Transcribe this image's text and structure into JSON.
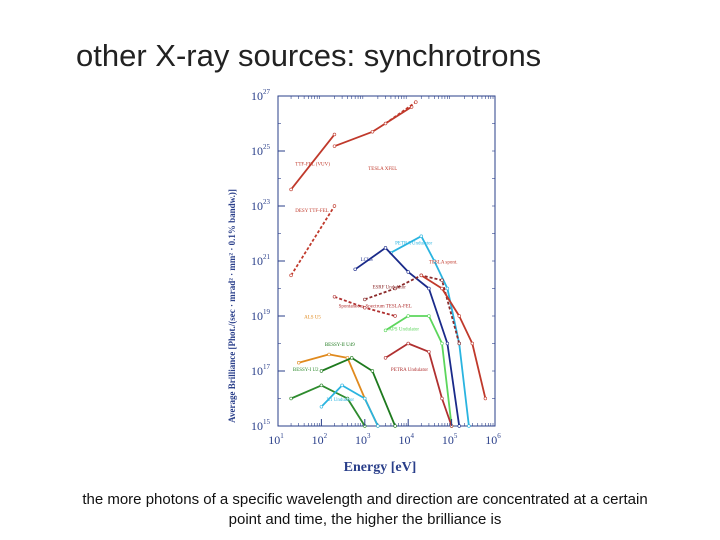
{
  "slide": {
    "title": "other X-ray sources: synchrotrons",
    "caption_line1": "the more photons of a specific wavelength and direction are concentrated at a certain",
    "caption_line2": "point and time, the higher the brilliance is"
  },
  "chart_data": {
    "type": "line",
    "xlabel": "Energy [eV]",
    "ylabel": "Average Brilliance [Phot./(sec · mrad² · mm² · 0.1% bandw.)]",
    "xscale": "log",
    "yscale": "log",
    "xlim": [
      10,
      1000000
    ],
    "ylim": [
      1000000000000000.0,
      1e+27
    ],
    "x_ticks": [
      {
        "base": "10",
        "exp": "1",
        "value": 10
      },
      {
        "base": "10",
        "exp": "2",
        "value": 100
      },
      {
        "base": "10",
        "exp": "3",
        "value": 1000
      },
      {
        "base": "10",
        "exp": "4",
        "value": 10000
      },
      {
        "base": "10",
        "exp": "5",
        "value": 100000
      },
      {
        "base": "10",
        "exp": "6",
        "value": 1000000
      }
    ],
    "y_ticks": [
      {
        "base": "10",
        "exp": "15",
        "value": 1000000000000000.0
      },
      {
        "base": "10",
        "exp": "17",
        "value": 1e+17
      },
      {
        "base": "10",
        "exp": "19",
        "value": 1e+19
      },
      {
        "base": "10",
        "exp": "21",
        "value": 1e+21
      },
      {
        "base": "10",
        "exp": "23",
        "value": 1e+23
      },
      {
        "base": "10",
        "exp": "25",
        "value": 1e+25
      },
      {
        "base": "10",
        "exp": "27",
        "value": 1e+27
      }
    ],
    "series": [
      {
        "label": "TTF-FEL (VUV)",
        "color": "#c0392b",
        "dashed": false,
        "points": [
          [
            20,
            4e+23
          ],
          [
            200,
            4e+25
          ]
        ]
      },
      {
        "label": "TESLA XFEL",
        "color": "#c0392b",
        "dashed": false,
        "points": [
          [
            200,
            1.5e+25
          ],
          [
            1500,
            5e+25
          ],
          [
            12000,
            4e+26
          ]
        ]
      },
      {
        "label": "",
        "color": "#c0392b",
        "dashed": true,
        "points": [
          [
            3000,
            1e+26
          ],
          [
            15000,
            6e+26
          ]
        ]
      },
      {
        "label": "DESY TTF-FEL",
        "color": "#c0392b",
        "dashed": true,
        "points": [
          [
            20,
            3e+20
          ],
          [
            200,
            1e+23
          ]
        ]
      },
      {
        "label": "PETRA Undulator",
        "color": "#2ab4e0",
        "dashed": false,
        "points": [
          [
            4000,
            2e+21
          ],
          [
            20000,
            8e+21
          ],
          [
            40000,
            1e+21
          ],
          [
            80000,
            1e+20
          ],
          [
            150000,
            1e+18
          ],
          [
            250000,
            1000000000000000.0
          ]
        ]
      },
      {
        "label": "LCLS",
        "color": "#1a2a8a",
        "dashed": false,
        "points": [
          [
            600,
            5e+20
          ],
          [
            3000,
            3e+21
          ],
          [
            10000,
            4e+20
          ],
          [
            30000,
            1e+20
          ],
          [
            80000,
            1e+18
          ],
          [
            150000,
            1000000000000000.0
          ]
        ]
      },
      {
        "label": "ESRF Undulator",
        "color": "#8b2a2a",
        "dashed": true,
        "points": [
          [
            1000,
            4e+19
          ],
          [
            5000,
            1e+20
          ],
          [
            20000,
            3e+20
          ],
          [
            60000,
            2e+20
          ],
          [
            150000,
            1e+18
          ]
        ]
      },
      {
        "label": "TESLA spontaneous Undulators",
        "color": "#c0392b",
        "dashed": false,
        "points": [
          [
            20000,
            3e+20
          ],
          [
            60000,
            1e+20
          ],
          [
            150000,
            1e+19
          ],
          [
            300000,
            1e+18
          ],
          [
            600000,
            1e+16
          ]
        ]
      },
      {
        "label": "Spontaneous Spectrum TESLA-FEL",
        "color": "#b03030",
        "dashed": true,
        "points": [
          [
            200,
            5e+19
          ],
          [
            1000,
            2e+19
          ],
          [
            5000,
            1e+19
          ]
        ]
      },
      {
        "label": "APS Undulator",
        "color": "#5cd65c",
        "dashed": false,
        "points": [
          [
            3000,
            3e+18
          ],
          [
            10000,
            1e+19
          ],
          [
            30000,
            1e+19
          ],
          [
            60000,
            1e+18
          ],
          [
            100000,
            1000000000000000.0
          ]
        ]
      },
      {
        "label": "ALS U5",
        "color": "#e08a1e",
        "dashed": false,
        "points": [
          [
            30,
            2e+17
          ],
          [
            150,
            4e+17
          ],
          [
            400,
            3e+17
          ],
          [
            1000,
            1e+16
          ],
          [
            2000,
            1000000000000000.0
          ]
        ]
      },
      {
        "label": "BESSY-II U49",
        "color": "#1e7a1e",
        "dashed": false,
        "points": [
          [
            100,
            1e+17
          ],
          [
            500,
            3e+17
          ],
          [
            1500,
            1e+17
          ],
          [
            5000,
            1000000000000000.0
          ]
        ]
      },
      {
        "label": "BESSY-I U2",
        "color": "#2e8b2e",
        "dashed": false,
        "points": [
          [
            20,
            1e+16
          ],
          [
            100,
            3e+16
          ],
          [
            400,
            1e+16
          ],
          [
            1000,
            1000000000000000.0
          ]
        ]
      },
      {
        "label": "X1 (NSLS) Undulator",
        "color": "#2ab4e0",
        "dashed": false,
        "points": [
          [
            100,
            5000000000000000.0
          ],
          [
            300,
            3e+16
          ],
          [
            1000,
            1e+16
          ],
          [
            2000,
            1000000000000000.0
          ]
        ]
      },
      {
        "label": "PETRA Undulator",
        "color": "#b03030",
        "dashed": false,
        "points": [
          [
            3000,
            3e+17
          ],
          [
            10000,
            1e+18
          ],
          [
            30000,
            5e+17
          ],
          [
            60000,
            1e+16
          ],
          [
            100000,
            1000000000000000.0
          ]
        ]
      }
    ],
    "annotations": [
      {
        "text": "TTF-FEL (VUV)",
        "x": 25,
        "y": 3e+24,
        "color": "#c0392b"
      },
      {
        "text": "DESY TTF-FEL",
        "x": 25,
        "y": 6e+22,
        "color": "#c0392b"
      },
      {
        "text": "TESLA XFEL",
        "x": 1200,
        "y": 2e+24,
        "color": "#c0392b"
      },
      {
        "text": "PETRA Undulator",
        "x": 5000,
        "y": 4e+21,
        "color": "#2ab4e0"
      },
      {
        "text": "LCLS",
        "x": 800,
        "y": 1e+21,
        "color": "#1a2a8a"
      },
      {
        "text": "TESLA spont.",
        "x": 30000,
        "y": 8e+20,
        "color": "#c0392b"
      },
      {
        "text": "ESRF Undulator",
        "x": 1500,
        "y": 1e+20,
        "color": "#8b2a2a"
      },
      {
        "text": "Spontaneous Spectrum TESLA-FEL",
        "x": 250,
        "y": 2e+19,
        "color": "#b03030"
      },
      {
        "text": "ALS U5",
        "x": 40,
        "y": 8e+18,
        "color": "#e08a1e"
      },
      {
        "text": "APS Undulator",
        "x": 3500,
        "y": 3e+18,
        "color": "#5cd65c"
      },
      {
        "text": "BESSY-I U2",
        "x": 22,
        "y": 1e+17,
        "color": "#2e8b2e"
      },
      {
        "text": "BESSY-II U49",
        "x": 120,
        "y": 8e+17,
        "color": "#1e7a1e"
      },
      {
        "text": "X1 Undulator",
        "x": 130,
        "y": 8000000000000000.0,
        "color": "#2ab4e0"
      },
      {
        "text": "PETRA Undulator",
        "x": 4000,
        "y": 1e+17,
        "color": "#b03030"
      }
    ]
  }
}
